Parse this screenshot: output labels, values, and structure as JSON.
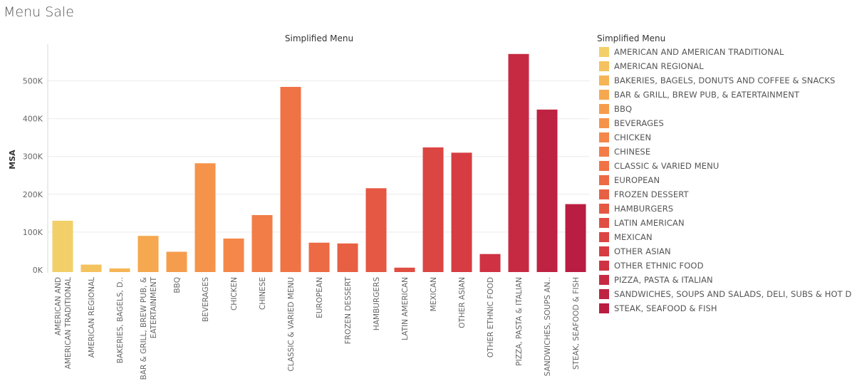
{
  "page": {
    "title": "Menu Sale"
  },
  "chart_data": {
    "type": "bar",
    "title": "Simplified Menu",
    "xlabel": "",
    "ylabel": "MSA",
    "ylim": [
      0,
      580000
    ],
    "yticks": [
      0,
      100000,
      200000,
      300000,
      400000,
      500000
    ],
    "ytick_labels": [
      "0K",
      "100K",
      "200K",
      "300K",
      "400K",
      "500K"
    ],
    "grid": "horizontal",
    "legend_position": "right",
    "legend_title": "Simplified Menu",
    "categories": [
      "AMERICAN AND AMERICAN TRADITIONAL",
      "AMERICAN REGIONAL",
      "BAKERIES, BAGELS, DONUTS AND COFFEE & SNACKS",
      "BAR & GRILL, BREW PUB, & EATERTAINMENT",
      "BBQ",
      "BEVERAGES",
      "CHICKEN",
      "CHINESE",
      "CLASSIC & VARIED MENU",
      "EUROPEAN",
      "FROZEN DESSERT",
      "HAMBURGERS",
      "LATIN AMERICAN",
      "MEXICAN",
      "OTHER ASIAN",
      "OTHER ETHNIC FOOD",
      "PIZZA, PASTA & ITALIAN",
      "SANDWICHES, SOUPS AND SALADS, DELI, SUBS & HOT DOG",
      "STEAK, SEAFOOD & FISH"
    ],
    "tick_labels": [
      [
        "AMERICAN AND",
        "AMERICAN TRADITIONAL"
      ],
      [
        "AMERICAN REGIONAL"
      ],
      [
        "BAKERIES, BAGELS, D.."
      ],
      [
        "BAR & GRILL, BREW PUB, &",
        "EATERTAINMENT"
      ],
      [
        "BBQ"
      ],
      [
        "BEVERAGES"
      ],
      [
        "CHICKEN"
      ],
      [
        "CHINESE"
      ],
      [
        "CLASSIC & VARIED MENU"
      ],
      [
        "EUROPEAN"
      ],
      [
        "FROZEN DESSERT"
      ],
      [
        "HAMBURGERS"
      ],
      [
        "LATIN AMERICAN"
      ],
      [
        "MEXICAN"
      ],
      [
        "OTHER ASIAN"
      ],
      [
        "OTHER ETHNIC FOOD"
      ],
      [
        "PIZZA, PASTA & ITALIAN"
      ],
      [
        "SANDWICHES, SOUPS AN.."
      ],
      [
        "STEAK, SEAFOOD & FISH"
      ]
    ],
    "values": [
      130000,
      14000,
      4000,
      90000,
      48000,
      282000,
      83000,
      145000,
      484000,
      72000,
      70000,
      216000,
      6000,
      324000,
      310000,
      42000,
      571000,
      424000,
      174000
    ],
    "colors": [
      "#f2cf68",
      "#f4c25e",
      "#f5b556",
      "#f5a84f",
      "#f69d4d",
      "#f5934b",
      "#f48749",
      "#f27d47",
      "#f07345",
      "#ec6a44",
      "#e86043",
      "#e55843",
      "#e04e43",
      "#db4542",
      "#d63c42",
      "#cf3242",
      "#c62a42",
      "#bf2342",
      "#b91d41"
    ]
  }
}
